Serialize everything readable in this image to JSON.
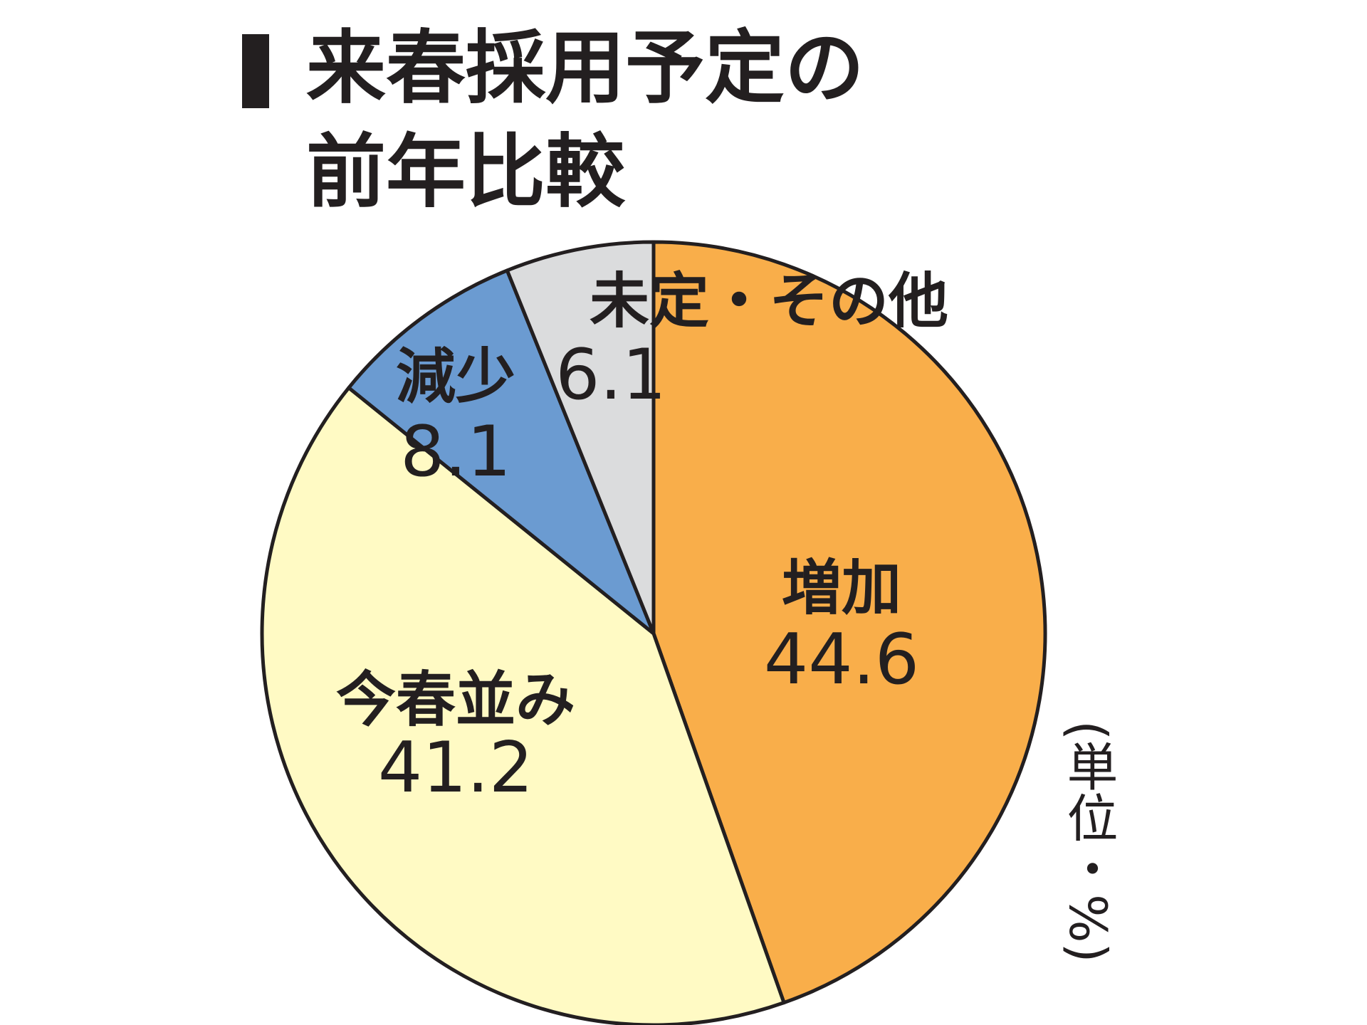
{
  "title": {
    "line1": "来春採用予定の",
    "line2": "前年比較"
  },
  "unit_label": "(単位・%)",
  "colors": {
    "increase": "#f9ae4a",
    "same": "#fffac4",
    "decrease": "#6b9bd1",
    "undecided": "#dbdcdd",
    "outline": "#231f20"
  },
  "chart_data": {
    "type": "pie",
    "title": "来春採用予定の前年比較",
    "unit": "%",
    "start": "12 o'clock",
    "direction": "clockwise",
    "slices": [
      {
        "label": "増加",
        "value": 44.6,
        "value_text": "44.6",
        "color": "#f9ae4a"
      },
      {
        "label": "今春並み",
        "value": 41.2,
        "value_text": "41.2",
        "color": "#fffac4"
      },
      {
        "label": "減少",
        "value": 8.1,
        "value_text": "8.1",
        "color": "#6b9bd1"
      },
      {
        "label": "未定・その他",
        "value": 6.1,
        "value_text": "6.1",
        "color": "#dbdcdd"
      }
    ]
  }
}
